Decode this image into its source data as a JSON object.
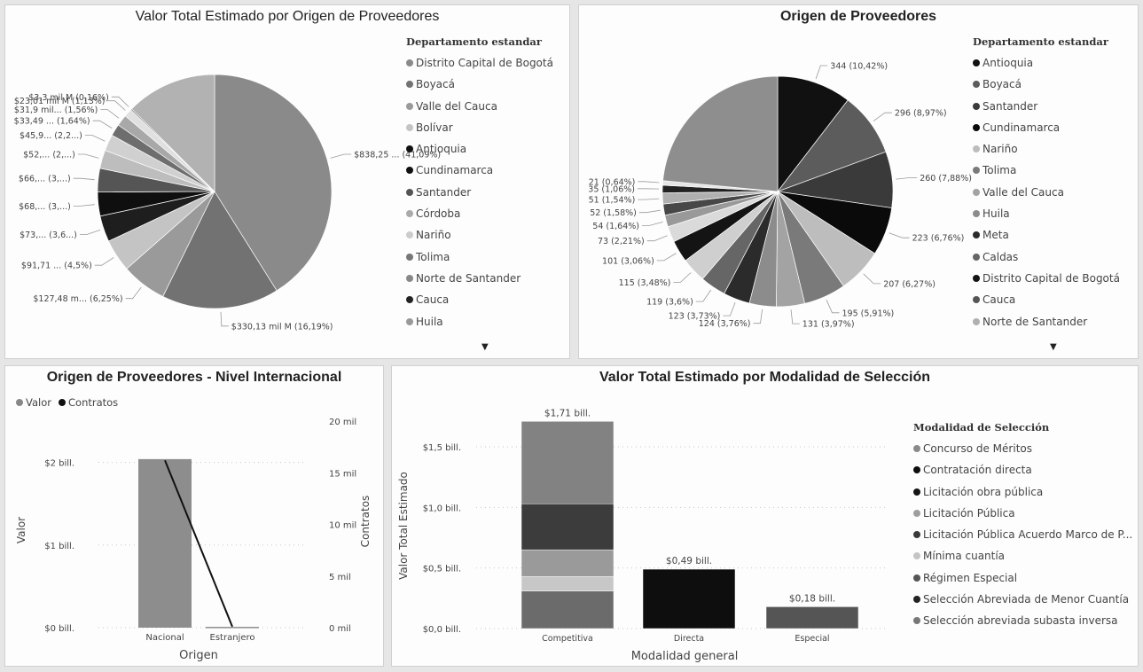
{
  "chart_data": [
    {
      "type": "pie",
      "title": "Valor Total Estimado por Origen de Proveedores",
      "legend_title": "Departamento estandar",
      "legend": [
        "Distrito Capital de Bogotá",
        "Boyacá",
        "Valle del Cauca",
        "Bolívar",
        "Antioquia",
        "Cundinamarca",
        "Santander",
        "Córdoba",
        "Nariño",
        "Tolima",
        "Norte de Santander",
        "Cauca",
        "Huila"
      ],
      "slices": [
        {
          "pct": 41.09,
          "label": "$838,25 ... (41,09%)",
          "color": "#8a8a8a"
        },
        {
          "pct": 16.19,
          "label": "$330,13 mil M (16,19%)",
          "color": "#727272"
        },
        {
          "pct": 6.25,
          "label": "$127,48 m... (6,25%)",
          "color": "#9a9a9a"
        },
        {
          "pct": 4.5,
          "label": "$91,71 ... (4,5%)",
          "color": "#c4c4c4"
        },
        {
          "pct": 3.6,
          "label": "$73,... (3,6...)",
          "color": "#1e1e1e"
        },
        {
          "pct": 3.3,
          "label": "$68,... (3,...)",
          "color": "#0f0f0f"
        },
        {
          "pct": 3.25,
          "label": "$66,... (3,...)",
          "color": "#555555"
        },
        {
          "pct": 2.55,
          "label": "$52,... (2,...)",
          "color": "#bdbdbd"
        },
        {
          "pct": 2.25,
          "label": "$45,9... (2,2...)",
          "color": "#d0d0d0"
        },
        {
          "pct": 1.64,
          "label": "$33,49 ... (1,64%)",
          "color": "#6e6e6e"
        },
        {
          "pct": 1.56,
          "label": "$31,9 mil... (1,56%)",
          "color": "#a8a8a8"
        },
        {
          "pct": 1.13,
          "label": "$23,01 mil M (1,13%)",
          "color": "#e0e0e0"
        },
        {
          "pct": 0.16,
          "label": "$3,3 mil M (0,16%)",
          "color": "#3a3a3a"
        },
        {
          "pct": 12.53,
          "label": "",
          "color": "#b2b2b2"
        }
      ]
    },
    {
      "type": "pie",
      "title": "Origen de Proveedores",
      "legend_title": "Departamento estandar",
      "legend": [
        "Antioquia",
        "Boyacá",
        "Santander",
        "Cundinamarca",
        "Nariño",
        "Tolima",
        "Valle del Cauca",
        "Huila",
        "Meta",
        "Caldas",
        "Distrito Capital de Bogotá",
        "Cauca",
        "Norte de Santander"
      ],
      "slices": [
        {
          "value": 344,
          "label": "344 (10,42%)",
          "color": "#111111"
        },
        {
          "value": 296,
          "label": "296 (8,97%)",
          "color": "#5c5c5c"
        },
        {
          "value": 260,
          "label": "260 (7,88%)",
          "color": "#3a3a3a"
        },
        {
          "value": 223,
          "label": "223 (6,76%)",
          "color": "#0a0a0a"
        },
        {
          "value": 207,
          "label": "207 (6,27%)",
          "color": "#bdbdbd"
        },
        {
          "value": 195,
          "label": "195 (5,91%)",
          "color": "#7a7a7a"
        },
        {
          "value": 131,
          "label": "131 (3,97%)",
          "color": "#a3a3a3"
        },
        {
          "value": 124,
          "label": "124 (3,76%)",
          "color": "#8c8c8c"
        },
        {
          "value": 123,
          "label": "123 (3,73%)",
          "color": "#2b2b2b"
        },
        {
          "value": 119,
          "label": "119 (3,6%)",
          "color": "#666666"
        },
        {
          "value": 115,
          "label": "115 (3,48%)",
          "color": "#cfcfcf"
        },
        {
          "value": 101,
          "label": "101 (3,06%)",
          "color": "#141414"
        },
        {
          "value": 73,
          "label": "73 (2,21%)",
          "color": "#dadada"
        },
        {
          "value": 54,
          "label": "54 (1,64%)",
          "color": "#999999"
        },
        {
          "value": 52,
          "label": "52 (1,58%)",
          "color": "#474747"
        },
        {
          "value": 51,
          "label": "51 (1,54%)",
          "color": "#b0b0b0"
        },
        {
          "value": 35,
          "label": "35 (1,06%)",
          "color": "#222222"
        },
        {
          "value": 21,
          "label": "21 (0,64%)",
          "color": "#e5e5e5"
        },
        {
          "value": 775,
          "label": "",
          "color": "#8e8e8e"
        }
      ]
    },
    {
      "type": "bar+line",
      "title": "Origen de Proveedores - Nivel Internacional",
      "legend": [
        {
          "name": "Valor",
          "color": "#888888"
        },
        {
          "name": "Contratos",
          "color": "#111111"
        }
      ],
      "categories": [
        "Nacional",
        "Estranjero"
      ],
      "bar_values_bill": [
        2.04,
        0.01
      ],
      "line_values_mil": [
        16.2,
        0.1
      ],
      "xlabel": "Origen",
      "ylabel": "Valor",
      "y2label": "Contratos",
      "yticks": [
        "$0 bill.",
        "$1 bill.",
        "$2 bill."
      ],
      "y2ticks": [
        "0 mil",
        "5 mil",
        "10 mil",
        "15 mil",
        "20 mil"
      ],
      "ylim": [
        0,
        2.5
      ],
      "y2lim": [
        0,
        20
      ]
    },
    {
      "type": "stacked-bar",
      "title": "Valor Total Estimado por Modalidad de Selección",
      "legend_title": "Modalidad de Selección",
      "legend": [
        {
          "name": "Concurso de Méritos",
          "color": "#8a8a8a"
        },
        {
          "name": "Contratación directa",
          "color": "#0e0e0e"
        },
        {
          "name": "Licitación obra pública",
          "color": "#141414"
        },
        {
          "name": "Licitación Pública",
          "color": "#9e9e9e"
        },
        {
          "name": "Licitación Pública Acuerdo Marco de P...",
          "color": "#3a3a3a"
        },
        {
          "name": "Mínima cuantía",
          "color": "#c4c4c4"
        },
        {
          "name": "Régimen Especial",
          "color": "#555555"
        },
        {
          "name": "Selección Abreviada de Menor Cuantía",
          "color": "#222222"
        },
        {
          "name": "Selección abreviada subasta inversa",
          "color": "#777777"
        }
      ],
      "categories": [
        "Competitiva",
        "Directa",
        "Especial"
      ],
      "totals_bill": [
        1.71,
        0.49,
        0.18
      ],
      "total_labels": [
        "$1,71 bill.",
        "$0,49 bill.",
        "$0,18 bill."
      ],
      "stacks": [
        [
          {
            "v": 0.31,
            "color": "#6b6b6b"
          },
          {
            "v": 0.12,
            "color": "#c7c7c7"
          },
          {
            "v": 0.22,
            "color": "#9a9a9a"
          },
          {
            "v": 0.38,
            "color": "#3c3c3c"
          },
          {
            "v": 0.68,
            "color": "#828282"
          }
        ],
        [
          {
            "v": 0.49,
            "color": "#0e0e0e"
          }
        ],
        [
          {
            "v": 0.18,
            "color": "#555555"
          }
        ]
      ],
      "xlabel": "Modalidad general",
      "ylabel": "Valor Total Estimado",
      "yticks": [
        "$0,0 bill.",
        "$0,5 bill.",
        "$1,0 bill.",
        "$1,5 bill."
      ],
      "ylim": [
        0,
        1.8
      ]
    }
  ]
}
